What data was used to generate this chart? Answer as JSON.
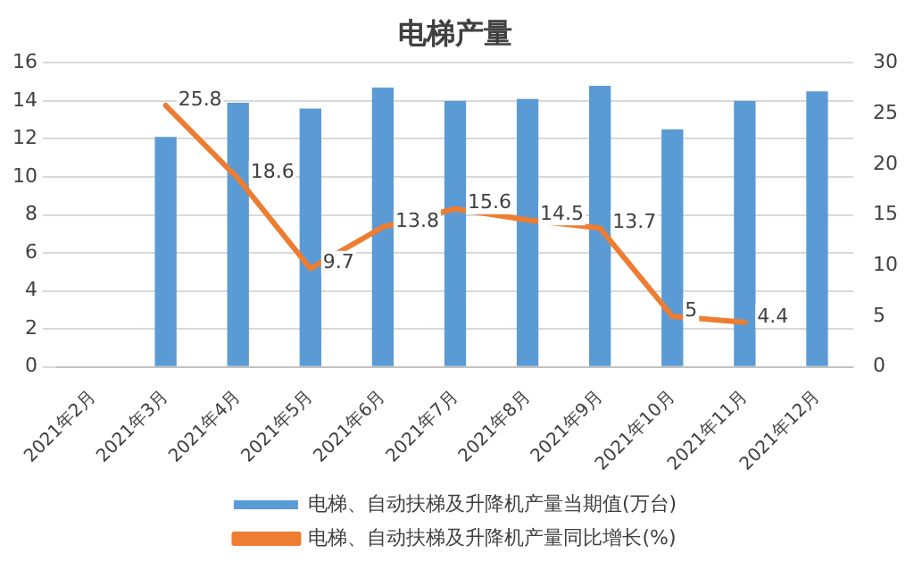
{
  "chart_data": {
    "type": "bar",
    "title": "电梯产量",
    "categories": [
      "2021年2月",
      "2021年3月",
      "2021年4月",
      "2021年5月",
      "2021年6月",
      "2021年7月",
      "2021年8月",
      "2021年9月",
      "2021年10月",
      "2021年11月",
      "2021年12月"
    ],
    "series": [
      {
        "name": "电梯、自动扶梯及升降机产量当期值(万台)",
        "color": "#5b9bd5",
        "values": [
          null,
          12.1,
          13.9,
          13.6,
          14.7,
          14.0,
          14.1,
          14.8,
          12.5,
          14.0,
          14.5
        ]
      },
      {
        "name": "电梯、自动扶梯及升降机产量同比增长(%)",
        "type": "line",
        "axis": "y2",
        "color": "#ed7d31",
        "values": [
          null,
          25.8,
          18.6,
          9.7,
          13.8,
          15.6,
          14.5,
          13.7,
          5,
          4.4,
          null
        ],
        "value_labels": [
          null,
          "25.8",
          "18.6",
          "9.7",
          "13.8",
          "15.6",
          "14.5",
          "13.7",
          "5",
          "4.4",
          null
        ]
      }
    ],
    "ylim": [
      0,
      16
    ],
    "yticks": [
      0,
      2,
      4,
      6,
      8,
      10,
      12,
      14,
      16
    ],
    "y2lim": [
      0,
      30
    ],
    "y2ticks": [
      0,
      5,
      10,
      15,
      20,
      25,
      30
    ],
    "grid": "y",
    "legend": "bottom",
    "marker": "none",
    "line_style": "solid"
  }
}
